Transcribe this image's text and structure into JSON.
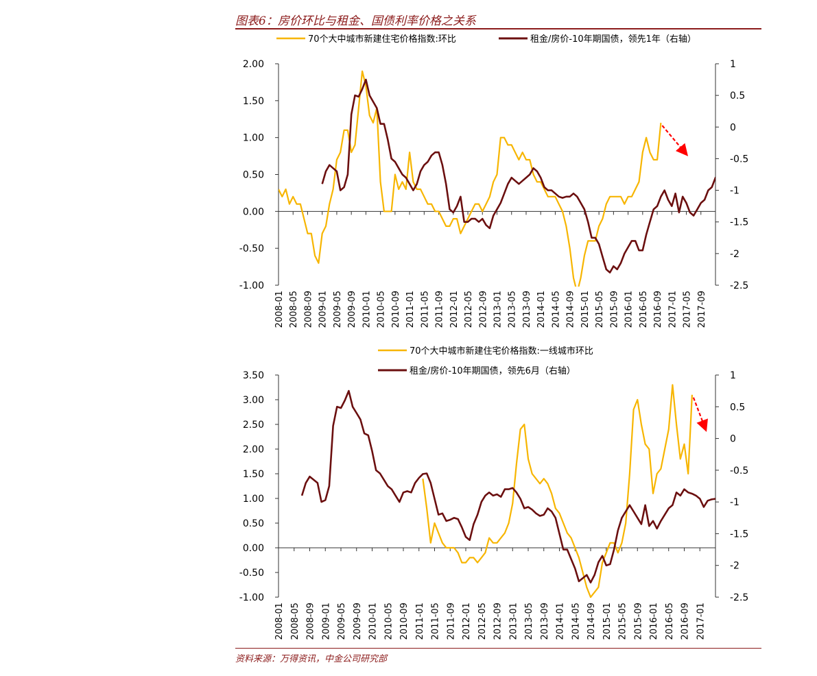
{
  "header": {
    "title": "图表6：房价环比与租金、国债利率价格之关系"
  },
  "footer": {
    "source": "资料来源：万得资讯，中金公司研究部"
  },
  "colors": {
    "accent": "#8b1a1a",
    "price_series": "#f7b500",
    "rent_series": "#6b0f0f",
    "arrow": "#ff0000"
  },
  "chart_data": [
    {
      "type": "line",
      "x_ticks": [
        "2008-01",
        "2008-05",
        "2008-09",
        "2009-01",
        "2009-05",
        "2009-09",
        "2010-01",
        "2010-05",
        "2010-09",
        "2011-01",
        "2011-05",
        "2011-09",
        "2012-01",
        "2012-05",
        "2012-09",
        "2013-01",
        "2013-05",
        "2013-09",
        "2014-01",
        "2014-05",
        "2014-09",
        "2015-01",
        "2015-05",
        "2015-09",
        "2016-01",
        "2016-05",
        "2016-09",
        "2017-01",
        "2017-05",
        "2017-09"
      ],
      "ylim": [
        -1.0,
        2.0
      ],
      "y_ticks": [
        "-1.00",
        "-0.50",
        "0.00",
        "0.50",
        "1.00",
        "1.50",
        "2.00"
      ],
      "y2lim": [
        -2.5,
        1.0
      ],
      "y2_ticks": [
        "-2.5",
        "-2",
        "-1.5",
        "-1",
        "-0.5",
        "0",
        "0.5",
        "1"
      ],
      "legend_position": "top",
      "annotation": "red dashed downward arrow near 2016-09",
      "series": [
        {
          "name": "70个大中城市新建住宅价格指数:环比",
          "axis": "left",
          "start": "2008-01",
          "values": [
            0.3,
            0.2,
            0.3,
            0.1,
            0.2,
            0.1,
            0.1,
            -0.1,
            -0.3,
            -0.3,
            -0.6,
            -0.7,
            -0.3,
            -0.2,
            0.1,
            0.3,
            0.7,
            0.8,
            1.1,
            1.1,
            0.8,
            0.9,
            1.4,
            1.9,
            1.7,
            1.3,
            1.2,
            1.4,
            0.4,
            0.0,
            0.0,
            0.0,
            0.5,
            0.3,
            0.4,
            0.3,
            0.8,
            0.4,
            0.3,
            0.3,
            0.2,
            0.1,
            0.1,
            0.0,
            0.0,
            -0.1,
            -0.2,
            -0.2,
            -0.1,
            -0.1,
            -0.3,
            -0.2,
            -0.1,
            0.0,
            0.1,
            0.1,
            0.0,
            0.1,
            0.2,
            0.4,
            0.5,
            1.0,
            1.0,
            0.9,
            0.9,
            0.8,
            0.7,
            0.8,
            0.7,
            0.7,
            0.5,
            0.4,
            0.4,
            0.3,
            0.2,
            0.2,
            0.2,
            0.1,
            0.0,
            -0.2,
            -0.5,
            -0.9,
            -1.1,
            -0.9,
            -0.6,
            -0.4,
            -0.4,
            -0.4,
            -0.2,
            -0.1,
            0.1,
            0.2,
            0.2,
            0.2,
            0.2,
            0.1,
            0.2,
            0.2,
            0.3,
            0.4,
            0.8,
            1.0,
            0.8,
            0.7,
            0.7,
            1.2
          ]
        },
        {
          "name": "租金/房价-10年期国债，领先1年（右轴）",
          "axis": "right",
          "start": "2009-01",
          "values": [
            -0.9,
            -0.7,
            -0.6,
            -0.65,
            -0.7,
            -1.0,
            -0.95,
            -0.75,
            0.2,
            0.5,
            0.48,
            0.6,
            0.75,
            0.5,
            0.4,
            0.3,
            0.05,
            0.05,
            -0.2,
            -0.5,
            -0.55,
            -0.65,
            -0.75,
            -0.8,
            -0.9,
            -1.0,
            -0.9,
            -0.7,
            -0.6,
            -0.55,
            -0.45,
            -0.4,
            -0.4,
            -0.6,
            -0.9,
            -1.3,
            -1.35,
            -1.25,
            -1.1,
            -1.5,
            -1.5,
            -1.45,
            -1.45,
            -1.5,
            -1.45,
            -1.55,
            -1.6,
            -1.4,
            -1.3,
            -1.2,
            -1.05,
            -0.9,
            -0.8,
            -0.85,
            -0.9,
            -0.85,
            -0.8,
            -0.75,
            -0.65,
            -0.7,
            -0.8,
            -0.95,
            -1.0,
            -1.0,
            -1.05,
            -1.1,
            -1.12,
            -1.1,
            -1.1,
            -1.05,
            -1.1,
            -1.2,
            -1.3,
            -1.5,
            -1.75,
            -1.75,
            -1.85,
            -2.05,
            -2.25,
            -2.3,
            -2.2,
            -2.25,
            -2.15,
            -2.0,
            -1.9,
            -1.8,
            -1.8,
            -1.95,
            -1.95,
            -1.7,
            -1.5,
            -1.3,
            -1.25,
            -1.1,
            -1.0,
            -1.15,
            -1.25,
            -1.05,
            -1.35,
            -1.1,
            -1.2,
            -1.35,
            -1.4,
            -1.3,
            -1.2,
            -1.15,
            -1.0,
            -0.95,
            -0.8,
            -0.85,
            -0.9,
            -0.8,
            -0.75,
            -0.8,
            -0.8,
            -0.85,
            -0.95,
            -1.05,
            -0.95,
            -0.92,
            -0.9,
            -0.95
          ]
        }
      ]
    },
    {
      "type": "line",
      "x_ticks": [
        "2008-01",
        "2008-05",
        "2008-09",
        "2009-01",
        "2009-05",
        "2009-09",
        "2010-01",
        "2010-05",
        "2010-09",
        "2011-01",
        "2011-05",
        "2011-09",
        "2012-01",
        "2012-05",
        "2012-09",
        "2013-01",
        "2013-05",
        "2013-09",
        "2014-01",
        "2014-05",
        "2014-09",
        "2015-01",
        "2015-05",
        "2015-09",
        "2016-01",
        "2016-05",
        "2016-09",
        "2017-01"
      ],
      "ylim": [
        -1.0,
        3.5
      ],
      "y_ticks": [
        "-1.00",
        "-0.50",
        "0.00",
        "0.50",
        "1.00",
        "1.50",
        "2.00",
        "2.50",
        "3.00",
        "3.50"
      ],
      "y2lim": [
        -2.5,
        1.0
      ],
      "y2_ticks": [
        "-2.5",
        "-2",
        "-1.5",
        "-1",
        "-0.5",
        "0",
        "0.5",
        "1"
      ],
      "legend_position": "top",
      "annotation": "red dashed downward arrow near 2016-09",
      "series": [
        {
          "name": "70个大中城市新建住宅价格指数:一线城市环比",
          "axis": "left",
          "start": "2011-02",
          "values": [
            1.4,
            0.8,
            0.1,
            0.5,
            0.3,
            0.1,
            0.0,
            0.0,
            0.0,
            -0.1,
            -0.3,
            -0.3,
            -0.2,
            -0.2,
            -0.3,
            -0.2,
            -0.1,
            0.2,
            0.1,
            0.1,
            0.2,
            0.3,
            0.5,
            0.9,
            1.7,
            2.4,
            2.5,
            1.8,
            1.5,
            1.4,
            1.3,
            1.4,
            1.3,
            1.1,
            0.8,
            0.7,
            0.5,
            0.3,
            0.2,
            0.0,
            -0.2,
            -0.5,
            -0.8,
            -1.0,
            -0.9,
            -0.8,
            -0.3,
            -0.1,
            0.1,
            0.1,
            -0.1,
            0.1,
            0.5,
            1.5,
            2.8,
            3.0,
            2.5,
            2.1,
            2.0,
            1.1,
            1.5,
            1.6,
            2.0,
            2.4,
            3.3,
            2.5,
            1.8,
            2.1,
            1.5,
            3.1
          ]
        },
        {
          "name": "租金/房价-10年期国债，领先6月（右轴）",
          "axis": "right",
          "start": "2008-07",
          "values": [
            -0.9,
            -0.7,
            -0.6,
            -0.65,
            -0.7,
            -1.0,
            -0.97,
            -0.75,
            0.2,
            0.5,
            0.48,
            0.6,
            0.75,
            0.5,
            0.4,
            0.3,
            0.08,
            0.05,
            -0.2,
            -0.5,
            -0.55,
            -0.65,
            -0.75,
            -0.8,
            -0.9,
            -1.0,
            -0.85,
            -0.83,
            -0.85,
            -0.7,
            -0.62,
            -0.56,
            -0.55,
            -0.7,
            -0.95,
            -1.2,
            -1.18,
            -1.3,
            -1.28,
            -1.25,
            -1.27,
            -1.4,
            -1.55,
            -1.6,
            -1.35,
            -1.2,
            -1.0,
            -0.9,
            -0.85,
            -0.9,
            -0.88,
            -0.92,
            -0.8,
            -0.8,
            -0.78,
            -0.85,
            -0.95,
            -1.1,
            -1.08,
            -1.12,
            -1.18,
            -1.22,
            -1.2,
            -1.1,
            -1.15,
            -1.25,
            -1.5,
            -1.75,
            -1.75,
            -1.9,
            -2.05,
            -2.25,
            -2.2,
            -2.15,
            -2.27,
            -2.15,
            -1.95,
            -1.85,
            -2.0,
            -1.98,
            -1.75,
            -1.45,
            -1.25,
            -1.15,
            -1.05,
            -1.15,
            -1.25,
            -1.35,
            -1.05,
            -1.38,
            -1.3,
            -1.42,
            -1.3,
            -1.2,
            -1.1,
            -1.05,
            -0.85,
            -0.9,
            -0.8,
            -0.85,
            -0.87,
            -0.9,
            -0.95,
            -1.08,
            -0.98,
            -0.96,
            -0.95,
            -1.0
          ]
        }
      ]
    }
  ]
}
